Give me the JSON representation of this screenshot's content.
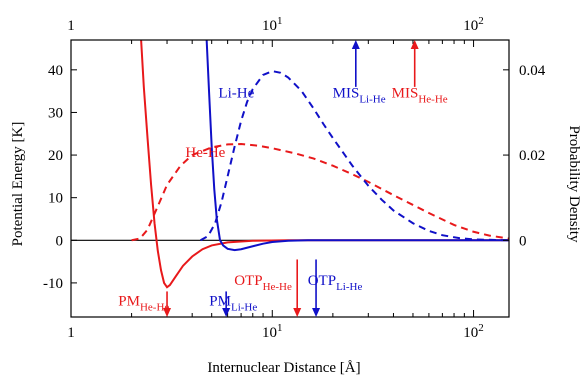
{
  "chart_data": {
    "type": "line",
    "xlabel": "Internuclear Distance [Å]",
    "ylabel_left": "Potential Energy [K]",
    "ylabel_right": "Probability Density",
    "x_scale": "log",
    "xlim": [
      1,
      150
    ],
    "ylim_left": [
      -18,
      47
    ],
    "ylim_right": [
      -0.018,
      0.047
    ],
    "x_ticks": [
      {
        "value": 1,
        "base": "1",
        "exp": ""
      },
      {
        "value": 10,
        "base": "10",
        "exp": "1"
      },
      {
        "value": 100,
        "base": "10",
        "exp": "2"
      }
    ],
    "y_ticks_left": [
      {
        "value": -10,
        "label": "-10"
      },
      {
        "value": 0,
        "label": "0"
      },
      {
        "value": 10,
        "label": "10"
      },
      {
        "value": 20,
        "label": "20"
      },
      {
        "value": 30,
        "label": "30"
      },
      {
        "value": 40,
        "label": "40"
      }
    ],
    "y_ticks_right": [
      {
        "value": 0,
        "label": "0"
      },
      {
        "value": 0.02,
        "label": "0.02"
      },
      {
        "value": 0.04,
        "label": "0.04"
      }
    ],
    "colors": {
      "he_he": "#e8191b",
      "li_he": "#1010c8",
      "axis": "#000000"
    },
    "series": [
      {
        "name": "He-He",
        "axis": "left",
        "style": "solid",
        "color": "#e8191b",
        "points": [
          [
            2.23,
            47
          ],
          [
            2.3,
            36
          ],
          [
            2.4,
            24
          ],
          [
            2.5,
            13
          ],
          [
            2.6,
            4
          ],
          [
            2.7,
            -2.5
          ],
          [
            2.8,
            -7
          ],
          [
            2.9,
            -10
          ],
          [
            3.0,
            -11
          ],
          [
            3.1,
            -10.5
          ],
          [
            3.3,
            -8.6
          ],
          [
            3.6,
            -6
          ],
          [
            4.0,
            -3.8
          ],
          [
            4.5,
            -2.1
          ],
          [
            5.0,
            -1.2
          ],
          [
            6.0,
            -0.5
          ],
          [
            8.0,
            -0.1
          ],
          [
            12,
            0
          ],
          [
            150,
            0
          ]
        ]
      },
      {
        "name": "Li-He",
        "axis": "left",
        "style": "solid",
        "color": "#1010c8",
        "points": [
          [
            4.72,
            47
          ],
          [
            4.85,
            35
          ],
          [
            5.0,
            22
          ],
          [
            5.15,
            12
          ],
          [
            5.3,
            5
          ],
          [
            5.5,
            0
          ],
          [
            5.7,
            -1.2
          ],
          [
            6.0,
            -2.0
          ],
          [
            6.5,
            -2.3
          ],
          [
            7.0,
            -2.1
          ],
          [
            8.0,
            -1.4
          ],
          [
            9.0,
            -0.8
          ],
          [
            10,
            -0.4
          ],
          [
            12,
            -0.1
          ],
          [
            15,
            0
          ],
          [
            150,
            0
          ]
        ]
      },
      {
        "name": "He-He",
        "axis": "right",
        "style": "dashed",
        "color": "#e8191b",
        "points": [
          [
            2.0,
            0
          ],
          [
            2.2,
            0.0004
          ],
          [
            2.4,
            0.0025
          ],
          [
            2.7,
            0.008
          ],
          [
            3.0,
            0.013
          ],
          [
            3.5,
            0.0175
          ],
          [
            4.0,
            0.02
          ],
          [
            5.0,
            0.0218
          ],
          [
            6.0,
            0.0225
          ],
          [
            7.0,
            0.0226
          ],
          [
            8.5,
            0.0222
          ],
          [
            10,
            0.0216
          ],
          [
            13,
            0.0204
          ],
          [
            16,
            0.0192
          ],
          [
            20,
            0.0175
          ],
          [
            25,
            0.0155
          ],
          [
            30,
            0.0137
          ],
          [
            40,
            0.0106
          ],
          [
            50,
            0.0083
          ],
          [
            60,
            0.0064
          ],
          [
            80,
            0.0036
          ],
          [
            100,
            0.002
          ],
          [
            120,
            0.0011
          ],
          [
            150,
            0.0004
          ]
        ]
      },
      {
        "name": "Li-He",
        "axis": "right",
        "style": "dashed",
        "color": "#1010c8",
        "points": [
          [
            4.4,
            0
          ],
          [
            4.8,
            0.001
          ],
          [
            5.2,
            0.004
          ],
          [
            5.6,
            0.009
          ],
          [
            6.0,
            0.015
          ],
          [
            6.5,
            0.022
          ],
          [
            7.0,
            0.028
          ],
          [
            7.5,
            0.0325
          ],
          [
            8.0,
            0.0355
          ],
          [
            9.0,
            0.0388
          ],
          [
            10,
            0.0397
          ],
          [
            11,
            0.0393
          ],
          [
            12,
            0.0382
          ],
          [
            14,
            0.035
          ],
          [
            16,
            0.031
          ],
          [
            18,
            0.0272
          ],
          [
            20,
            0.024
          ],
          [
            25,
            0.0175
          ],
          [
            30,
            0.0128
          ],
          [
            35,
            0.0095
          ],
          [
            40,
            0.007
          ],
          [
            50,
            0.004
          ],
          [
            60,
            0.0022
          ],
          [
            70,
            0.0012
          ],
          [
            85,
            0.0005
          ],
          [
            100,
            0.0002
          ],
          [
            150,
            0
          ]
        ]
      }
    ],
    "curve_labels": [
      {
        "text": "Li-He",
        "color": "#1010c8",
        "x": 5.4,
        "y": 33.5
      },
      {
        "text": "He-He",
        "color": "#e8191b",
        "x": 3.7,
        "y": 19.5
      }
    ],
    "annotations_top": [
      {
        "main": "MIS",
        "sub": "Li-He",
        "color": "#1010c8",
        "x": 26,
        "label_x": 27,
        "arrow_from": 36,
        "arrow_to": 47
      },
      {
        "main": "MIS",
        "sub": "He-He",
        "color": "#e8191b",
        "x": 51,
        "label_x": 54,
        "arrow_from": 36,
        "arrow_to": 47
      }
    ],
    "annotations_bottom": [
      {
        "main": "PM",
        "sub": "He-He",
        "color": "#e8191b",
        "x": 3.0,
        "label_x": 2.3,
        "arrow_from": -12,
        "arrow_to": -18
      },
      {
        "main": "PM",
        "sub": "Li-He",
        "color": "#1010c8",
        "x": 5.9,
        "label_x": 6.4,
        "arrow_from": -12,
        "arrow_to": -18
      },
      {
        "main": "OTP",
        "sub": "He-He",
        "color": "#e8191b",
        "x": 13.3,
        "label_x": 9.0,
        "arrow_from": -4.5,
        "arrow_to": -18
      },
      {
        "main": "OTP",
        "sub": "Li-He",
        "color": "#1010c8",
        "x": 16.5,
        "label_x": 20.5,
        "arrow_from": -4.5,
        "arrow_to": -18
      }
    ]
  }
}
